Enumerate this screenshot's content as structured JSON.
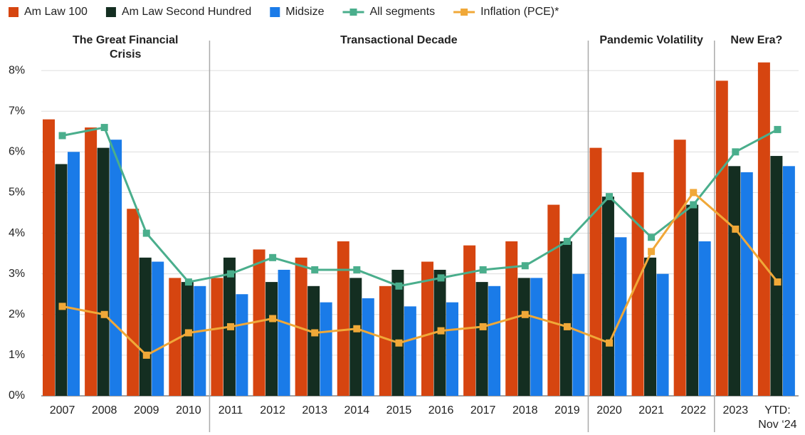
{
  "chart_data": {
    "type": "bar",
    "categories": [
      "2007",
      "2008",
      "2009",
      "2010",
      "2011",
      "2012",
      "2013",
      "2014",
      "2015",
      "2016",
      "2017",
      "2018",
      "2019",
      "2020",
      "2021",
      "2022",
      "2023",
      "YTD: Nov ‘24"
    ],
    "series": [
      {
        "name": "Am Law 100",
        "type": "bar",
        "color": "#d64510",
        "values": [
          6.8,
          6.6,
          4.6,
          2.9,
          2.9,
          3.6,
          3.4,
          3.8,
          2.7,
          3.3,
          3.7,
          3.8,
          4.7,
          6.1,
          5.5,
          6.3,
          7.75,
          8.2
        ]
      },
      {
        "name": "Am Law Second Hundred",
        "type": "bar",
        "color": "#142e21",
        "values": [
          5.7,
          6.1,
          3.4,
          2.8,
          3.4,
          2.8,
          2.7,
          2.9,
          3.1,
          3.1,
          2.8,
          2.9,
          3.8,
          4.9,
          3.4,
          4.7,
          5.65,
          5.9
        ]
      },
      {
        "name": "Midsize",
        "type": "bar",
        "color": "#1a7be8",
        "values": [
          6.0,
          6.3,
          3.3,
          2.7,
          2.5,
          3.1,
          2.3,
          2.4,
          2.2,
          2.3,
          2.7,
          2.9,
          3.0,
          3.9,
          3.0,
          3.8,
          5.5,
          5.65
        ]
      },
      {
        "name": "All segments",
        "type": "line",
        "color": "#4aae8c",
        "values": [
          6.4,
          6.6,
          4.0,
          2.8,
          3.0,
          3.4,
          3.1,
          3.1,
          2.7,
          2.9,
          3.1,
          3.2,
          3.8,
          4.9,
          3.9,
          4.7,
          6.0,
          6.55
        ]
      },
      {
        "name": "Inflation (PCE)*",
        "type": "line",
        "color": "#f0a838",
        "values": [
          2.2,
          2.0,
          1.0,
          1.55,
          1.7,
          1.9,
          1.55,
          1.65,
          1.3,
          1.6,
          1.7,
          2.0,
          1.7,
          1.3,
          3.55,
          5.0,
          4.1,
          2.8
        ]
      }
    ],
    "annotations": [
      "The Great Financial Crisis",
      "Transactional Decade",
      "Pandemic Volatility",
      "New Era?"
    ],
    "ylim": [
      0,
      9
    ],
    "yticks": [
      {
        "value": 0,
        "label": "0%"
      },
      {
        "value": 1,
        "label": "1%"
      },
      {
        "value": 2,
        "label": "2%"
      },
      {
        "value": 3,
        "label": "3%"
      },
      {
        "value": 4,
        "label": "4%"
      },
      {
        "value": 5,
        "label": "5%"
      },
      {
        "value": 6,
        "label": "6%"
      },
      {
        "value": 7,
        "label": "7%"
      },
      {
        "value": 8,
        "label": "8%"
      }
    ],
    "grid": true,
    "legend": "top"
  }
}
